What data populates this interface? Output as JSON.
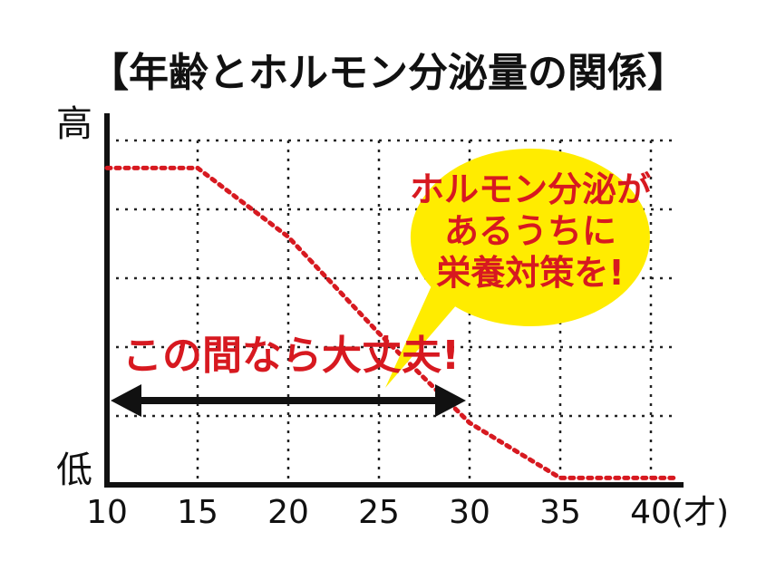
{
  "chart_data": {
    "type": "line",
    "title": "【年齢とホルモン分泌量の関係】",
    "x": [
      10,
      15,
      20,
      25,
      30,
      35,
      40
    ],
    "x_ticks": [
      "10",
      "15",
      "20",
      "25",
      "30",
      "35",
      "40"
    ],
    "x_unit": "(才)",
    "xlim": [
      10,
      41.5
    ],
    "y_top_label": "高",
    "y_bottom_label": "低",
    "ylim": [
      0,
      5
    ],
    "series": [
      {
        "points": [
          [
            10,
            4.6
          ],
          [
            15,
            4.6
          ],
          [
            20,
            3.6
          ],
          [
            25,
            2.2
          ],
          [
            30,
            0.9
          ],
          [
            35,
            0.1
          ],
          [
            41.5,
            0.1
          ]
        ],
        "color": "#d71920"
      }
    ],
    "grid": true,
    "range_arrow": {
      "from": 10,
      "to": 30,
      "label": "この間なら大丈夫!"
    },
    "callout": {
      "lines": [
        "ホルモン分泌が",
        "あるうちに",
        "栄養対策を!"
      ],
      "fill": "#ffec00",
      "text_color": "#d71920"
    }
  }
}
